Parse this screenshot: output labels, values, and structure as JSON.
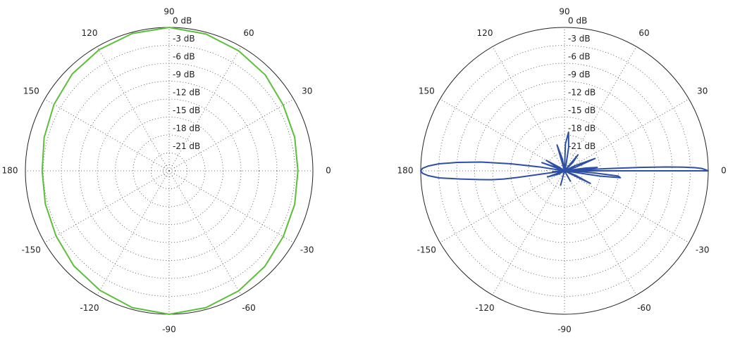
{
  "chart_data": [
    {
      "type": "polar",
      "title": "",
      "r_unit": "dB",
      "r_range": [
        -24,
        0
      ],
      "r_ticks": [
        0,
        -3,
        -6,
        -9,
        -12,
        -15,
        -18,
        -21
      ],
      "r_tick_labels": [
        "0 dB",
        "-3 dB",
        "-6 dB",
        "-9 dB",
        "-12 dB",
        "-15 dB",
        "-18 dB",
        "-21 dB"
      ],
      "angle_ticks": [
        0,
        30,
        60,
        90,
        120,
        150,
        180,
        -150,
        -120,
        -90,
        -60,
        -30
      ],
      "angle_tick_labels": [
        "0",
        "30",
        "60",
        "90",
        "120",
        "150",
        "180",
        "-150",
        "-120",
        "-90",
        "-60",
        "-30"
      ],
      "grid": true,
      "series": [
        {
          "color": "#5bbf3a",
          "points": [
            [
              0,
              -2.5
            ],
            [
              15,
              -2.3
            ],
            [
              30,
              -2.0
            ],
            [
              45,
              -1.3
            ],
            [
              60,
              -0.8
            ],
            [
              75,
              -0.3
            ],
            [
              90,
              0.0
            ],
            [
              105,
              -0.2
            ],
            [
              120,
              -0.6
            ],
            [
              135,
              -1.1
            ],
            [
              150,
              -1.8
            ],
            [
              165,
              -2.4
            ],
            [
              180,
              -2.8
            ],
            [
              -165,
              -2.6
            ],
            [
              -150,
              -2.2
            ],
            [
              -135,
              -1.5
            ],
            [
              -120,
              -0.9
            ],
            [
              -105,
              -0.3
            ],
            [
              -90,
              0.0
            ],
            [
              -75,
              -0.3
            ],
            [
              -60,
              -0.8
            ],
            [
              -45,
              -1.4
            ],
            [
              -30,
              -2.0
            ],
            [
              -15,
              -2.3
            ]
          ]
        },
        {
          "color": "#2e4fa6",
          "points": [
            [
              0,
              0.0
            ],
            [
              0.5,
              -0.5
            ],
            [
              1,
              -1.1
            ],
            [
              1.4,
              -2.2
            ],
            [
              1.8,
              -4.2
            ],
            [
              2.2,
              -7.0
            ],
            [
              2.6,
              -11.5
            ],
            [
              3.0,
              -17.0
            ],
            [
              3.3,
              -24.0
            ],
            [
              4.5,
              -20.4
            ],
            [
              6,
              -18.5
            ],
            [
              7.5,
              -20.4
            ],
            [
              9,
              -24.0
            ],
            [
              -2,
              -22.0
            ],
            [
              -4,
              -19.0
            ],
            [
              -5.5,
              -15.0
            ],
            [
              -7,
              -14.6
            ],
            [
              -8.5,
              -18.0
            ],
            [
              -10,
              -24.0
            ],
            [
              18,
              -22.0
            ],
            [
              22,
              -18.5
            ],
            [
              26,
              -22.0
            ],
            [
              30,
              -24.0
            ],
            [
              -22,
              -22.0
            ],
            [
              -26,
              -19.2
            ],
            [
              -30,
              -24.0
            ],
            [
              45,
              -22.0
            ],
            [
              50,
              -20.5
            ],
            [
              55,
              -24.0
            ],
            [
              -55,
              -24.0
            ],
            [
              -60,
              -22.0
            ],
            [
              -65,
              -24.0
            ],
            [
              75,
              -23.0
            ],
            [
              80,
              -20.0
            ],
            [
              84,
              -17.5
            ],
            [
              88,
              -19.5
            ],
            [
              92,
              -24.0
            ],
            [
              100,
              -22.0
            ],
            [
              106,
              -19.5
            ],
            [
              110,
              -24.0
            ],
            [
              -100,
              -24.0
            ],
            [
              -105,
              -21.5
            ],
            [
              -110,
              -24.0
            ],
            [
              145,
              -23.0
            ],
            [
              150,
              -20.5
            ],
            [
              155,
              -23.0
            ],
            [
              160,
              -20.0
            ],
            [
              164,
              -24.0
            ],
            [
              -150,
              -23.0
            ],
            [
              -160,
              -21.0
            ],
            [
              -165,
              -24.0
            ],
            [
              171,
              -20.0
            ],
            [
              172.5,
              -15.0
            ],
            [
              174,
              -10.0
            ],
            [
              175.5,
              -6.0
            ],
            [
              176.8,
              -3.0
            ],
            [
              178,
              -1.2
            ],
            [
              179,
              -0.3
            ],
            [
              180,
              0.0
            ],
            [
              -179,
              -0.3
            ],
            [
              -178,
              -1.2
            ],
            [
              -176.8,
              -3.0
            ],
            [
              -175.5,
              -6.5
            ],
            [
              -174,
              -10.0
            ],
            [
              -173,
              -11.8
            ],
            [
              -172.3,
              -13.8
            ],
            [
              -172,
              -16.0
            ],
            [
              -171,
              -24.0
            ],
            [
              -176,
              -22.0
            ],
            [
              -179.5,
              -24.0
            ],
            [
              179.5,
              -24.0
            ],
            [
              -1.5,
              -24.0
            ],
            [
              0,
              -0.0
            ]
          ]
        }
      ]
    }
  ]
}
